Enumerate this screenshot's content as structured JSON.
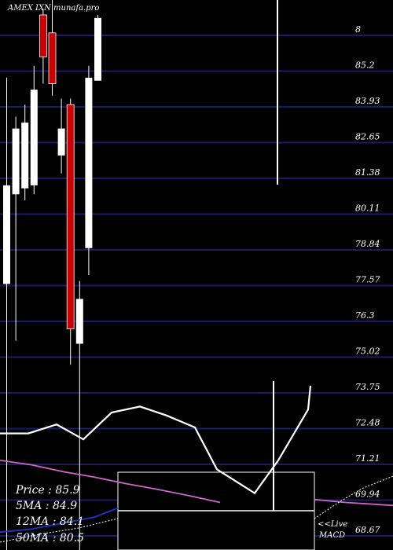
{
  "chart_data": {
    "type": "candlestick",
    "title": "AMEX IXN munafa.pro",
    "y_ticks": [
      "8",
      "85.2",
      "83.93",
      "82.65",
      "81.38",
      "80.11",
      "78.84",
      "77.57",
      "76.3",
      "75.02",
      "73.75",
      "72.48",
      "71.21",
      "69.94",
      "68.67"
    ],
    "ylim": [
      68.0,
      86.4
    ],
    "grid": true,
    "candles": [
      {
        "open": 76.9,
        "close": 80.2,
        "high": 83.8,
        "low": null
      },
      {
        "open": 79.9,
        "close": 82.1,
        "high": 82.5,
        "low": 75.0
      },
      {
        "open": 80.1,
        "close": 82.3,
        "high": 82.9,
        "low": 79.7
      },
      {
        "open": 80.2,
        "close": 83.4,
        "high": 84.2,
        "low": 79.9
      },
      {
        "open": 85.9,
        "close": 84.5,
        "high": 86.1,
        "low": 83.6
      },
      {
        "open": 85.3,
        "close": 83.6,
        "high": 86.4,
        "low": 83.2
      },
      {
        "open": 81.2,
        "close": 82.1,
        "high": 83.1,
        "low": 80.6
      },
      {
        "open": 82.9,
        "close": 75.4,
        "high": 83.1,
        "low": 74.2
      },
      {
        "open": 74.9,
        "close": 76.4,
        "high": 77.0,
        "low": null
      },
      {
        "open": 78.1,
        "close": 83.8,
        "high": 84.2,
        "low": 77.2
      },
      {
        "open": 83.7,
        "close": 85.8,
        "high": 85.9,
        "low": 83.7
      }
    ],
    "overlay_line_values": [
      71.9,
      71.9,
      72.2,
      71.7,
      72.6,
      72.8,
      72.5,
      72.1,
      70.7,
      69.9,
      71.0,
      72.7,
      73.5
    ],
    "moving_average_line_values": [
      71.0,
      70.85,
      70.62,
      70.44,
      70.22,
      70.03,
      69.82,
      69.59
    ],
    "price_line_values": [
      68.6,
      68.7,
      68.9,
      69.1,
      69.4
    ],
    "summary": {
      "price": "Price  : 85.9",
      "ma5": "5MA : 84.9",
      "ma12": "12MA : 84.1",
      "ma50": "50MA : 80.5"
    },
    "live_labels": [
      "<<Live",
      "MACD"
    ],
    "colors": {
      "background": "#000000",
      "grid": "#1a1a66",
      "up": "#ffffff",
      "down": "#cc0000",
      "ma": "#cc66cc",
      "price_line": "#2233cc"
    }
  }
}
